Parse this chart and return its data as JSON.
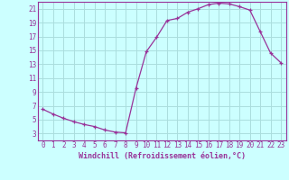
{
  "x": [
    0,
    1,
    2,
    3,
    4,
    5,
    6,
    7,
    8,
    9,
    10,
    11,
    12,
    13,
    14,
    15,
    16,
    17,
    18,
    19,
    20,
    21,
    22,
    23
  ],
  "y": [
    6.5,
    5.8,
    5.2,
    4.7,
    4.3,
    4.0,
    3.5,
    3.2,
    3.1,
    9.5,
    14.8,
    16.9,
    19.3,
    19.6,
    20.5,
    21.0,
    21.6,
    21.8,
    21.7,
    21.3,
    20.8,
    17.7,
    14.6,
    13.2
  ],
  "xlabel": "Windchill (Refroidissement éolien,°C)",
  "ylim": [
    2,
    22
  ],
  "xlim": [
    -0.5,
    23.5
  ],
  "yticks": [
    3,
    5,
    7,
    9,
    11,
    13,
    15,
    17,
    19,
    21
  ],
  "xticks": [
    0,
    1,
    2,
    3,
    4,
    5,
    6,
    7,
    8,
    9,
    10,
    11,
    12,
    13,
    14,
    15,
    16,
    17,
    18,
    19,
    20,
    21,
    22,
    23
  ],
  "line_color": "#993399",
  "marker": "+",
  "bg_color": "#ccffff",
  "grid_color": "#aadddd",
  "axis_color": "#993399",
  "xlabel_color": "#993399",
  "tick_fontsize": 5.5,
  "xlabel_fontsize": 6.0
}
